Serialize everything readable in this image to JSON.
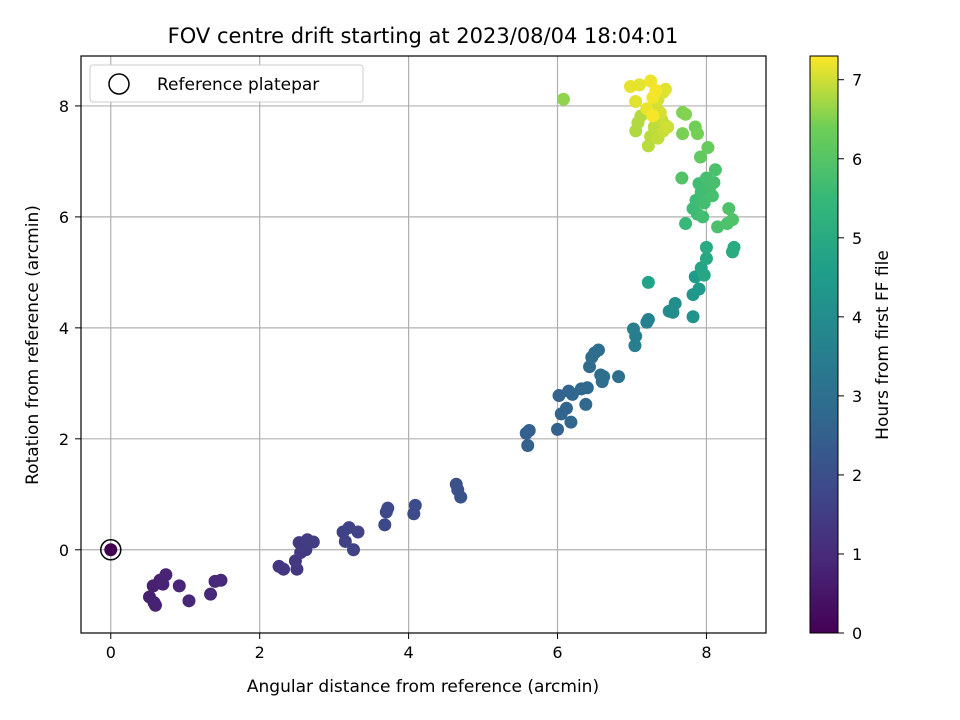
{
  "chart_data": {
    "type": "scatter",
    "title": "FOV centre drift starting at 2023/08/04 18:04:01",
    "xlabel": "Angular distance from reference (arcmin)",
    "ylabel": "Rotation from reference (arcmin)",
    "xlim": [
      -0.4,
      8.8
    ],
    "ylim": [
      -1.5,
      8.9
    ],
    "xticks": [
      0,
      2,
      4,
      6,
      8
    ],
    "yticks": [
      0,
      2,
      4,
      6,
      8
    ],
    "grid": true,
    "legend": {
      "placement": "top-left",
      "entries": [
        "Reference platepar"
      ]
    },
    "colorbar": {
      "label": "Hours from first FF file",
      "range": [
        0,
        7.3
      ],
      "ticks": [
        0,
        1,
        2,
        3,
        4,
        5,
        6,
        7
      ],
      "colormap": "viridis"
    },
    "reference_point": {
      "x": 0,
      "y": 0,
      "c": 0
    },
    "points": [
      {
        "x": 0.0,
        "y": 0.0,
        "c": 0.0
      },
      {
        "x": 0.52,
        "y": -0.85,
        "c": 0.7
      },
      {
        "x": 0.57,
        "y": -0.65,
        "c": 0.72
      },
      {
        "x": 0.58,
        "y": -0.95,
        "c": 0.74
      },
      {
        "x": 0.6,
        "y": -1.0,
        "c": 0.75
      },
      {
        "x": 0.66,
        "y": -0.55,
        "c": 0.78
      },
      {
        "x": 0.7,
        "y": -0.62,
        "c": 0.8
      },
      {
        "x": 0.74,
        "y": -0.45,
        "c": 0.82
      },
      {
        "x": 0.92,
        "y": -0.65,
        "c": 0.85
      },
      {
        "x": 1.05,
        "y": -0.92,
        "c": 0.9
      },
      {
        "x": 1.34,
        "y": -0.8,
        "c": 0.92
      },
      {
        "x": 1.4,
        "y": -0.57,
        "c": 0.95
      },
      {
        "x": 1.48,
        "y": -0.55,
        "c": 0.98
      },
      {
        "x": 2.26,
        "y": -0.3,
        "c": 1.3
      },
      {
        "x": 2.32,
        "y": -0.35,
        "c": 1.32
      },
      {
        "x": 2.48,
        "y": -0.2,
        "c": 1.35
      },
      {
        "x": 2.5,
        "y": -0.35,
        "c": 1.37
      },
      {
        "x": 2.55,
        "y": -0.05,
        "c": 1.4
      },
      {
        "x": 2.53,
        "y": 0.13,
        "c": 1.42
      },
      {
        "x": 2.62,
        "y": 0.0,
        "c": 1.44
      },
      {
        "x": 2.64,
        "y": 0.18,
        "c": 1.46
      },
      {
        "x": 2.72,
        "y": 0.14,
        "c": 1.48
      },
      {
        "x": 3.12,
        "y": 0.32,
        "c": 1.6
      },
      {
        "x": 3.15,
        "y": 0.15,
        "c": 1.62
      },
      {
        "x": 3.2,
        "y": 0.4,
        "c": 1.64
      },
      {
        "x": 3.26,
        "y": 0.0,
        "c": 1.66
      },
      {
        "x": 3.32,
        "y": 0.32,
        "c": 1.68
      },
      {
        "x": 3.68,
        "y": 0.45,
        "c": 1.78
      },
      {
        "x": 3.7,
        "y": 0.68,
        "c": 1.8
      },
      {
        "x": 3.72,
        "y": 0.75,
        "c": 1.82
      },
      {
        "x": 4.07,
        "y": 0.65,
        "c": 1.9
      },
      {
        "x": 4.09,
        "y": 0.8,
        "c": 1.92
      },
      {
        "x": 4.64,
        "y": 1.18,
        "c": 2.05
      },
      {
        "x": 4.66,
        "y": 1.08,
        "c": 2.07
      },
      {
        "x": 4.7,
        "y": 0.95,
        "c": 2.09
      },
      {
        "x": 5.58,
        "y": 2.1,
        "c": 2.5
      },
      {
        "x": 5.6,
        "y": 1.88,
        "c": 2.52
      },
      {
        "x": 5.62,
        "y": 2.15,
        "c": 2.54
      },
      {
        "x": 6.0,
        "y": 2.17,
        "c": 2.6
      },
      {
        "x": 6.02,
        "y": 2.78,
        "c": 2.62
      },
      {
        "x": 6.05,
        "y": 2.45,
        "c": 2.64
      },
      {
        "x": 6.12,
        "y": 2.55,
        "c": 2.66
      },
      {
        "x": 6.15,
        "y": 2.86,
        "c": 2.68
      },
      {
        "x": 6.18,
        "y": 2.3,
        "c": 2.7
      },
      {
        "x": 6.2,
        "y": 2.8,
        "c": 2.72
      },
      {
        "x": 6.32,
        "y": 2.9,
        "c": 2.74
      },
      {
        "x": 6.38,
        "y": 2.62,
        "c": 2.76
      },
      {
        "x": 6.4,
        "y": 2.92,
        "c": 2.78
      },
      {
        "x": 6.43,
        "y": 3.3,
        "c": 2.85
      },
      {
        "x": 6.46,
        "y": 3.47,
        "c": 2.87
      },
      {
        "x": 6.5,
        "y": 3.55,
        "c": 2.89
      },
      {
        "x": 6.55,
        "y": 3.6,
        "c": 2.91
      },
      {
        "x": 6.58,
        "y": 3.15,
        "c": 2.93
      },
      {
        "x": 6.6,
        "y": 3.03,
        "c": 2.95
      },
      {
        "x": 6.62,
        "y": 3.12,
        "c": 2.97
      },
      {
        "x": 6.82,
        "y": 3.12,
        "c": 3.0
      },
      {
        "x": 7.02,
        "y": 3.98,
        "c": 3.5
      },
      {
        "x": 7.04,
        "y": 3.68,
        "c": 3.52
      },
      {
        "x": 7.05,
        "y": 3.85,
        "c": 3.54
      },
      {
        "x": 7.2,
        "y": 4.1,
        "c": 3.6
      },
      {
        "x": 7.22,
        "y": 4.15,
        "c": 3.62
      },
      {
        "x": 7.22,
        "y": 4.82,
        "c": 4.7
      },
      {
        "x": 7.5,
        "y": 4.3,
        "c": 4.0
      },
      {
        "x": 7.55,
        "y": 4.28,
        "c": 4.02
      },
      {
        "x": 7.58,
        "y": 4.44,
        "c": 4.05
      },
      {
        "x": 7.82,
        "y": 4.2,
        "c": 4.2
      },
      {
        "x": 7.82,
        "y": 4.6,
        "c": 4.3
      },
      {
        "x": 7.85,
        "y": 4.92,
        "c": 4.5
      },
      {
        "x": 7.9,
        "y": 4.7,
        "c": 4.4
      },
      {
        "x": 7.93,
        "y": 5.08,
        "c": 4.8
      },
      {
        "x": 7.97,
        "y": 4.95,
        "c": 4.85
      },
      {
        "x": 8.0,
        "y": 5.25,
        "c": 4.9
      },
      {
        "x": 8.0,
        "y": 5.45,
        "c": 5.0
      },
      {
        "x": 8.35,
        "y": 5.37,
        "c": 5.05
      },
      {
        "x": 8.37,
        "y": 5.45,
        "c": 5.07
      },
      {
        "x": 7.72,
        "y": 5.88,
        "c": 5.5
      },
      {
        "x": 7.82,
        "y": 6.15,
        "c": 5.6
      },
      {
        "x": 7.86,
        "y": 6.3,
        "c": 5.62
      },
      {
        "x": 7.88,
        "y": 6.05,
        "c": 5.64
      },
      {
        "x": 7.9,
        "y": 6.6,
        "c": 5.66
      },
      {
        "x": 7.93,
        "y": 6.45,
        "c": 5.68
      },
      {
        "x": 7.95,
        "y": 6.0,
        "c": 5.7
      },
      {
        "x": 7.97,
        "y": 6.25,
        "c": 5.72
      },
      {
        "x": 8.0,
        "y": 6.7,
        "c": 5.74
      },
      {
        "x": 8.05,
        "y": 6.55,
        "c": 5.76
      },
      {
        "x": 8.08,
        "y": 6.38,
        "c": 5.78
      },
      {
        "x": 8.1,
        "y": 6.62,
        "c": 5.8
      },
      {
        "x": 8.12,
        "y": 6.85,
        "c": 5.82
      },
      {
        "x": 8.15,
        "y": 5.82,
        "c": 5.84
      },
      {
        "x": 8.28,
        "y": 5.88,
        "c": 5.86
      },
      {
        "x": 8.3,
        "y": 6.15,
        "c": 5.88
      },
      {
        "x": 8.35,
        "y": 5.95,
        "c": 5.9
      },
      {
        "x": 7.67,
        "y": 6.7,
        "c": 5.95
      },
      {
        "x": 7.92,
        "y": 7.08,
        "c": 6.2
      },
      {
        "x": 8.02,
        "y": 7.25,
        "c": 6.25
      },
      {
        "x": 7.85,
        "y": 7.62,
        "c": 6.4
      },
      {
        "x": 7.88,
        "y": 7.5,
        "c": 6.42
      },
      {
        "x": 7.68,
        "y": 7.5,
        "c": 6.45
      },
      {
        "x": 7.68,
        "y": 7.88,
        "c": 6.5
      },
      {
        "x": 7.72,
        "y": 7.85,
        "c": 6.52
      },
      {
        "x": 6.08,
        "y": 8.12,
        "c": 6.6
      },
      {
        "x": 7.05,
        "y": 7.55,
        "c": 6.8
      },
      {
        "x": 7.08,
        "y": 7.7,
        "c": 6.82
      },
      {
        "x": 7.12,
        "y": 7.82,
        "c": 6.84
      },
      {
        "x": 7.22,
        "y": 7.28,
        "c": 6.86
      },
      {
        "x": 7.25,
        "y": 7.45,
        "c": 6.88
      },
      {
        "x": 7.3,
        "y": 7.62,
        "c": 6.9
      },
      {
        "x": 7.35,
        "y": 7.42,
        "c": 6.92
      },
      {
        "x": 7.4,
        "y": 7.75,
        "c": 6.94
      },
      {
        "x": 7.42,
        "y": 7.55,
        "c": 6.96
      },
      {
        "x": 7.45,
        "y": 7.65,
        "c": 6.98
      },
      {
        "x": 7.48,
        "y": 7.62,
        "c": 7.0
      },
      {
        "x": 7.32,
        "y": 8.0,
        "c": 7.02
      },
      {
        "x": 7.35,
        "y": 8.12,
        "c": 7.04
      },
      {
        "x": 7.38,
        "y": 7.88,
        "c": 7.06
      },
      {
        "x": 7.42,
        "y": 8.25,
        "c": 7.08
      },
      {
        "x": 7.45,
        "y": 8.3,
        "c": 7.1
      },
      {
        "x": 7.05,
        "y": 8.08,
        "c": 7.12
      },
      {
        "x": 7.1,
        "y": 8.38,
        "c": 7.14
      },
      {
        "x": 6.98,
        "y": 8.35,
        "c": 7.16
      },
      {
        "x": 7.2,
        "y": 7.95,
        "c": 7.18
      },
      {
        "x": 7.25,
        "y": 8.45,
        "c": 7.2
      },
      {
        "x": 7.28,
        "y": 8.15,
        "c": 7.22
      },
      {
        "x": 7.32,
        "y": 8.28,
        "c": 7.24
      },
      {
        "x": 7.28,
        "y": 7.82,
        "c": 7.26
      }
    ]
  }
}
